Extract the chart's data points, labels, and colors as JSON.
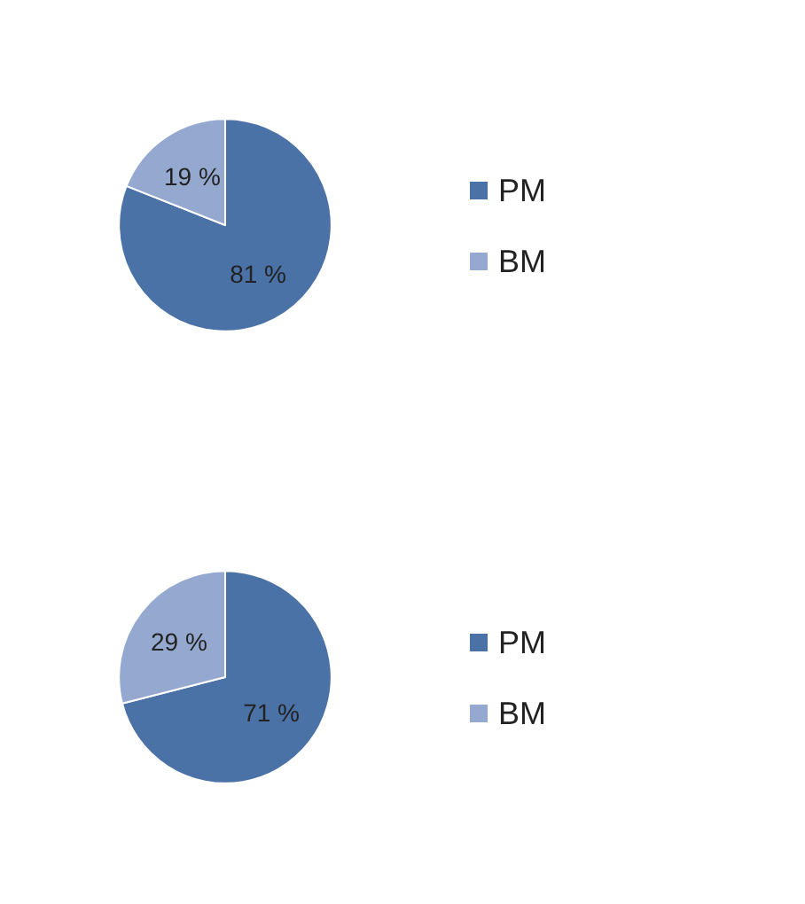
{
  "chart_data": [
    {
      "type": "pie",
      "categories": [
        "PM",
        "BM"
      ],
      "values": [
        81,
        19
      ],
      "colors": [
        "#4a72a6",
        "#95a9d0"
      ],
      "value_labels": [
        "81 %",
        "19 %"
      ],
      "legend": "right"
    },
    {
      "type": "pie",
      "categories": [
        "PM",
        "BM"
      ],
      "values": [
        71,
        29
      ],
      "colors": [
        "#4a72a6",
        "#95a9d0"
      ],
      "value_labels": [
        "71 %",
        "29 %"
      ],
      "legend": "right"
    }
  ]
}
